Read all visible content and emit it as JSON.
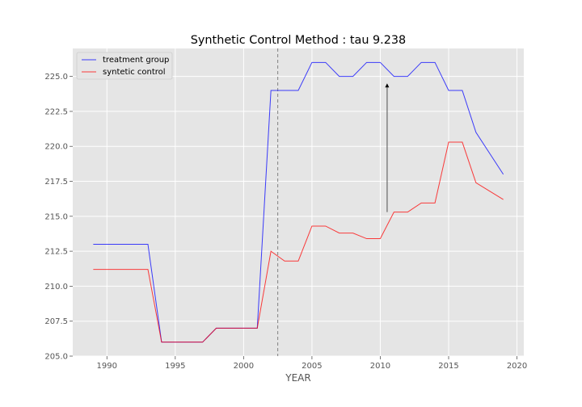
{
  "chart_data": {
    "type": "line",
    "title": "Synthetic Control Method : tau 9.238",
    "xlabel": "YEAR",
    "ylabel": "",
    "xlim": [
      1987.5,
      2020.5
    ],
    "ylim": [
      205.0,
      227.0
    ],
    "xticks": [
      1990,
      1995,
      2000,
      2005,
      2010,
      2015,
      2020
    ],
    "yticks": [
      205.0,
      207.5,
      210.0,
      212.5,
      215.0,
      217.5,
      220.0,
      222.5,
      225.0
    ],
    "xtick_labels": [
      "1990",
      "1995",
      "2000",
      "2005",
      "2010",
      "2015",
      "2020"
    ],
    "ytick_labels": [
      "205.0",
      "207.5",
      "210.0",
      "212.5",
      "215.0",
      "217.5",
      "220.0",
      "222.5",
      "225.0"
    ],
    "grid": true,
    "legend_position": "top-left",
    "intervention_year": 2002.5,
    "arrow": {
      "x": 2010.5,
      "y_start": 215.3,
      "y_end": 224.5,
      "color": "#555555"
    },
    "x": [
      1989,
      1990,
      1991,
      1992,
      1993,
      1994,
      1995,
      1996,
      1997,
      1998,
      1999,
      2000,
      2001,
      2002,
      2003,
      2004,
      2005,
      2006,
      2007,
      2008,
      2009,
      2010,
      2011,
      2012,
      2013,
      2014,
      2015,
      2016,
      2017,
      2018,
      2019
    ],
    "series": [
      {
        "name": "treatment group",
        "color": "#0000ff",
        "values": [
          213.0,
          213.0,
          213.0,
          213.0,
          213.0,
          206.0,
          206.0,
          206.0,
          206.0,
          207.0,
          207.0,
          207.0,
          207.0,
          224.0,
          224.0,
          224.0,
          226.0,
          226.0,
          225.0,
          225.0,
          226.0,
          226.0,
          225.0,
          225.0,
          226.0,
          226.0,
          224.0,
          224.0,
          221.0,
          219.5,
          218.0
        ]
      },
      {
        "name": "syntetic control",
        "color": "#ff0000",
        "values": [
          211.2,
          211.2,
          211.2,
          211.2,
          211.2,
          206.0,
          206.0,
          206.0,
          206.0,
          207.0,
          207.0,
          207.0,
          207.0,
          212.5,
          211.8,
          211.8,
          214.3,
          214.3,
          213.8,
          213.8,
          213.4,
          213.4,
          215.3,
          215.3,
          215.95,
          215.95,
          220.3,
          220.3,
          217.4,
          216.8,
          216.2
        ]
      }
    ]
  }
}
